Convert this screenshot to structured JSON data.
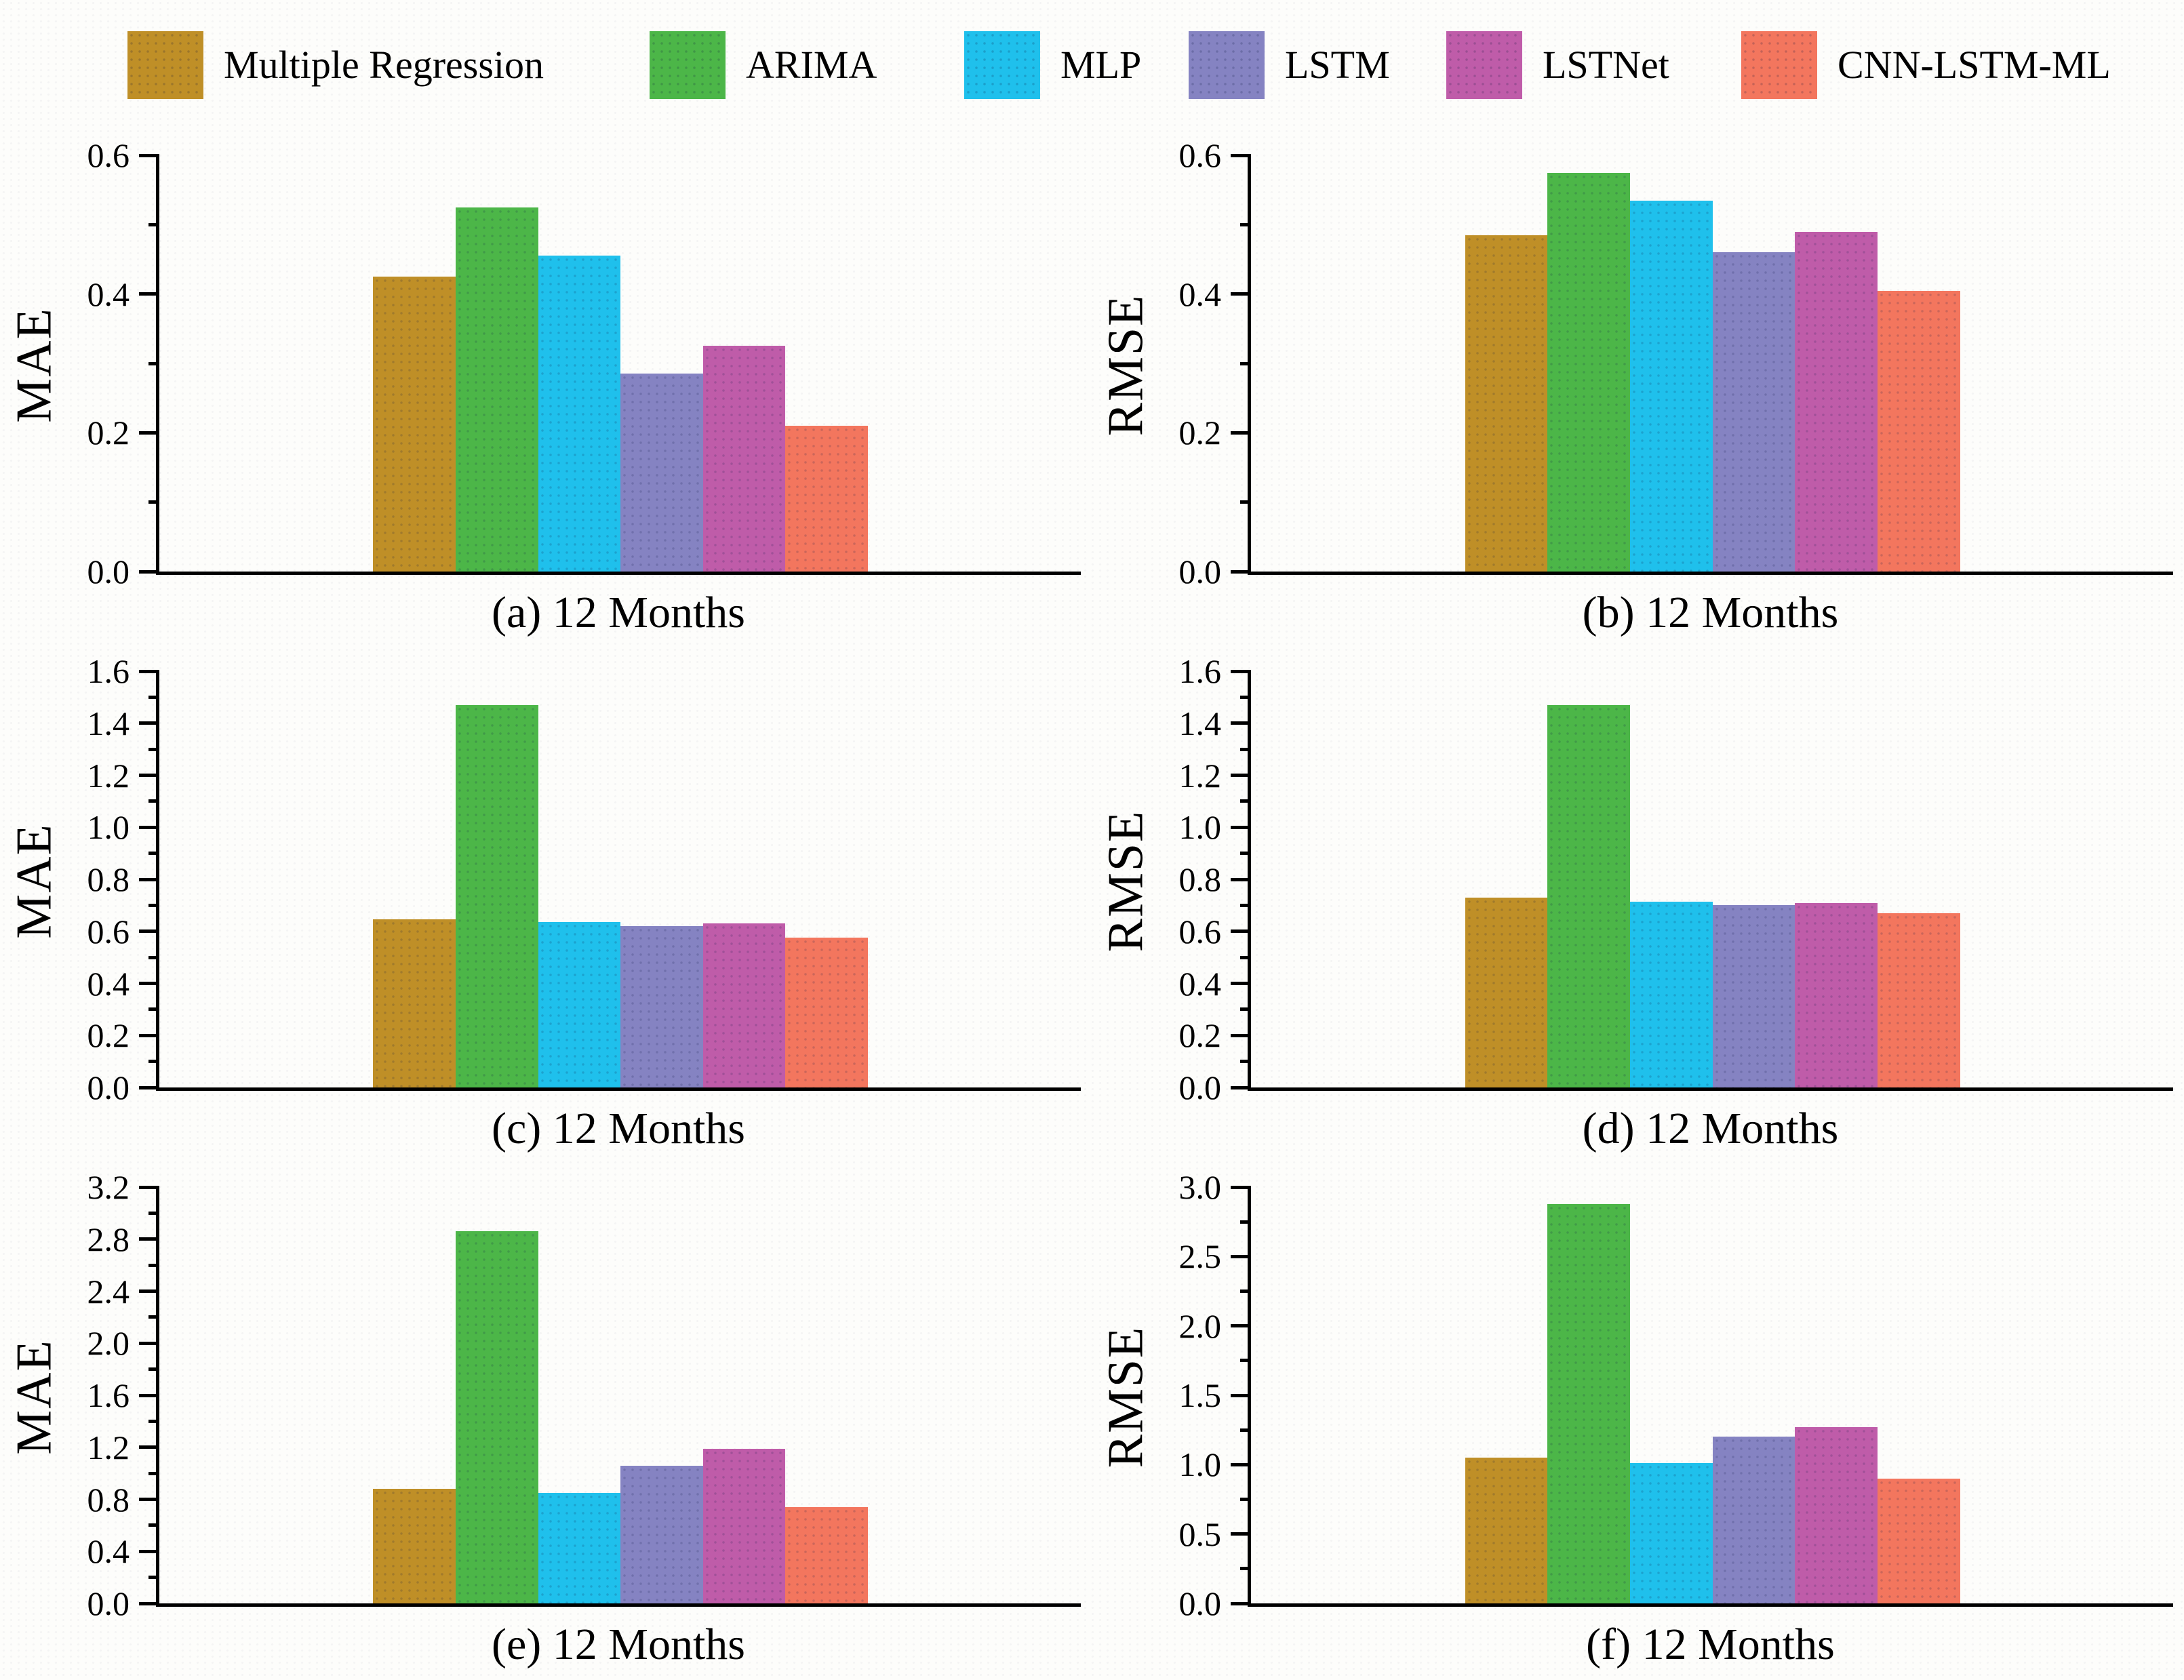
{
  "legend": {
    "items": [
      {
        "label": "Multiple Regression",
        "color": "#bf8f27"
      },
      {
        "label": "ARIMA",
        "color": "#4cb648"
      },
      {
        "label": "MLP",
        "color": "#1fc0ec"
      },
      {
        "label": "LSTM",
        "color": "#8583c2"
      },
      {
        "label": "LSTNet",
        "color": "#bf5ca9"
      },
      {
        "label": "CNN-LSTM-ML",
        "color": "#f3765e"
      }
    ]
  },
  "chart_data": [
    {
      "type": "bar",
      "panel": "a",
      "title": "(a) 12 Months",
      "ylabel": "MAE",
      "categories": [
        "Multiple Regression",
        "ARIMA",
        "MLP",
        "LSTM",
        "LSTNet",
        "CNN-LSTM-ML"
      ],
      "values": [
        0.425,
        0.525,
        0.455,
        0.285,
        0.325,
        0.21
      ],
      "ylim": [
        0,
        0.6
      ],
      "ytick_step": 0.2,
      "minor_step": 0.1,
      "ytick_decimals": 1,
      "grid": false,
      "legend_position": "top"
    },
    {
      "type": "bar",
      "panel": "b",
      "title": "(b) 12 Months",
      "ylabel": "RMSE",
      "categories": [
        "Multiple Regression",
        "ARIMA",
        "MLP",
        "LSTM",
        "LSTNet",
        "CNN-LSTM-ML"
      ],
      "values": [
        0.485,
        0.575,
        0.535,
        0.46,
        0.49,
        0.405
      ],
      "ylim": [
        0,
        0.6
      ],
      "ytick_step": 0.2,
      "minor_step": 0.1,
      "ytick_decimals": 1,
      "grid": false,
      "legend_position": "top"
    },
    {
      "type": "bar",
      "panel": "c",
      "title": "(c) 12 Months",
      "ylabel": "MAE",
      "categories": [
        "Multiple Regression",
        "ARIMA",
        "MLP",
        "LSTM",
        "LSTNet",
        "CNN-LSTM-ML"
      ],
      "values": [
        0.645,
        1.47,
        0.635,
        0.62,
        0.63,
        0.575
      ],
      "ylim": [
        0,
        1.6
      ],
      "ytick_step": 0.2,
      "minor_step": 0.1,
      "ytick_decimals": 1,
      "grid": false,
      "legend_position": "top"
    },
    {
      "type": "bar",
      "panel": "d",
      "title": "(d) 12 Months",
      "ylabel": "RMSE",
      "categories": [
        "Multiple Regression",
        "ARIMA",
        "MLP",
        "LSTM",
        "LSTNet",
        "CNN-LSTM-ML"
      ],
      "values": [
        0.73,
        1.47,
        0.715,
        0.7,
        0.71,
        0.67
      ],
      "ylim": [
        0,
        1.6
      ],
      "ytick_step": 0.2,
      "minor_step": 0.1,
      "ytick_decimals": 1,
      "grid": false,
      "legend_position": "top"
    },
    {
      "type": "bar",
      "panel": "e",
      "title": "(e) 12 Months",
      "ylabel": "MAE",
      "categories": [
        "Multiple Regression",
        "ARIMA",
        "MLP",
        "LSTM",
        "LSTNet",
        "CNN-LSTM-ML"
      ],
      "values": [
        0.88,
        2.86,
        0.85,
        1.06,
        1.19,
        0.74
      ],
      "ylim": [
        0,
        3.2
      ],
      "ytick_step": 0.4,
      "minor_step": 0.2,
      "ytick_decimals": 1,
      "grid": false,
      "legend_position": "top"
    },
    {
      "type": "bar",
      "panel": "f",
      "title": "(f) 12 Months",
      "ylabel": "RMSE",
      "categories": [
        "Multiple Regression",
        "ARIMA",
        "MLP",
        "LSTM",
        "LSTNet",
        "CNN-LSTM-ML"
      ],
      "values": [
        1.05,
        2.88,
        1.01,
        1.2,
        1.27,
        0.9
      ],
      "ylim": [
        0,
        3.0
      ],
      "ytick_step": 0.5,
      "minor_step": 0.25,
      "ytick_decimals": 1,
      "grid": false,
      "legend_position": "top"
    }
  ]
}
